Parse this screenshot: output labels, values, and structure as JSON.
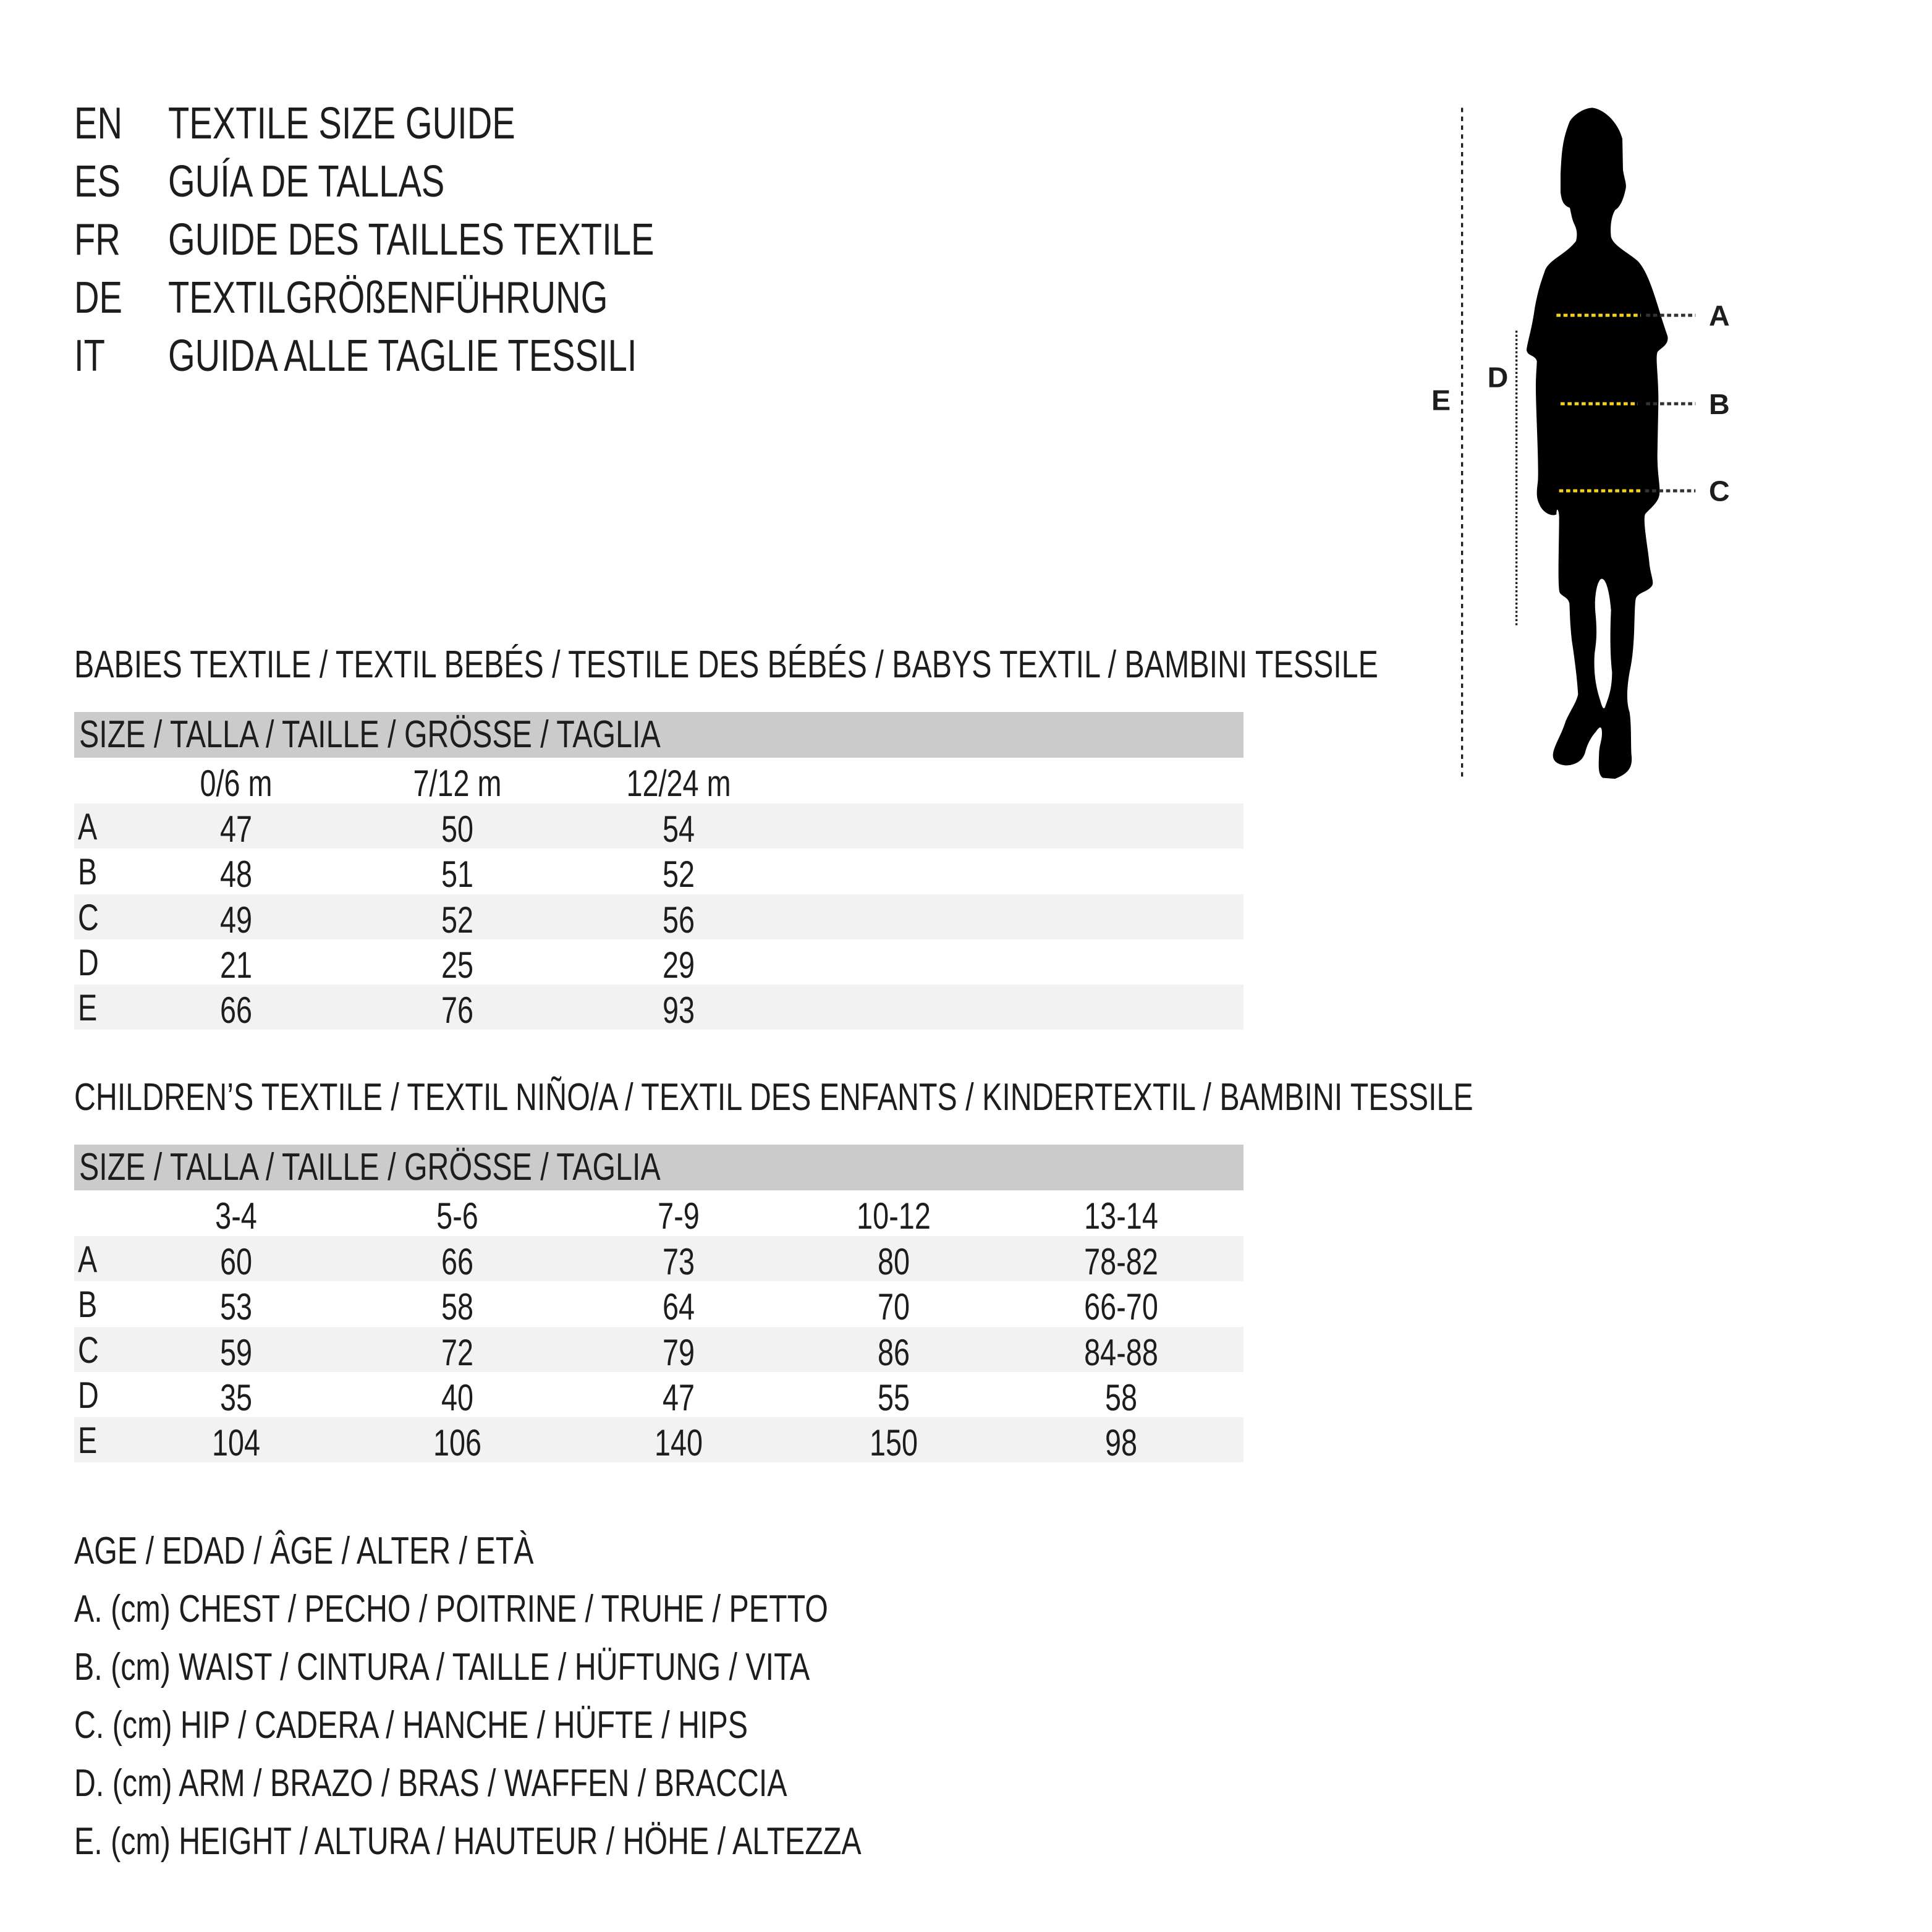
{
  "titles": [
    {
      "code": "EN",
      "text": "TEXTILE SIZE GUIDE"
    },
    {
      "code": "ES",
      "text": "GUÍA DE TALLAS"
    },
    {
      "code": "FR",
      "text": "GUIDE DES TAILLES TEXTILE"
    },
    {
      "code": "DE",
      "text": "TEXTILGRÖßENFÜHRUNG"
    },
    {
      "code": "IT",
      "text": "GUIDA ALLE TAGLIE TESSILI"
    }
  ],
  "figure": {
    "labels": {
      "A": "A",
      "B": "B",
      "C": "C",
      "D": "D",
      "E": "E"
    },
    "accent_color": "#f3d21b"
  },
  "babies": {
    "heading": "BABIES TEXTILE / TEXTIL BEBÉS / TESTILE DES BÉBÉS / BABYS TEXTIL / BAMBINI TESSILE",
    "size_header": "SIZE / TALLA / TAILLE / GRÖSSE / TAGLIA",
    "columns": [
      "0/6 m",
      "7/12 m",
      "12/24 m"
    ],
    "rows": [
      {
        "label": "A",
        "values": [
          "47",
          "50",
          "54"
        ]
      },
      {
        "label": "B",
        "values": [
          "48",
          "51",
          "52"
        ]
      },
      {
        "label": "C",
        "values": [
          "49",
          "52",
          "56"
        ]
      },
      {
        "label": "D",
        "values": [
          "21",
          "25",
          "29"
        ]
      },
      {
        "label": "E",
        "values": [
          "66",
          "76",
          "93"
        ]
      }
    ]
  },
  "children": {
    "heading": "CHILDREN’S TEXTILE / TEXTIL NIÑO/A / TEXTIL DES ENFANTS / KINDERTEXTIL / BAMBINI TESSILE",
    "size_header": "SIZE / TALLA / TAILLE / GRÖSSE / TAGLIA",
    "columns": [
      "3-4",
      "5-6",
      "7-9",
      "10-12",
      "13-14"
    ],
    "rows": [
      {
        "label": "A",
        "values": [
          "60",
          "66",
          "73",
          "80",
          "78-82"
        ]
      },
      {
        "label": "B",
        "values": [
          "53",
          "58",
          "64",
          "70",
          "66-70"
        ]
      },
      {
        "label": "C",
        "values": [
          "59",
          "72",
          "79",
          "86",
          "84-88"
        ]
      },
      {
        "label": "D",
        "values": [
          "35",
          "40",
          "47",
          "55",
          "58"
        ]
      },
      {
        "label": "E",
        "values": [
          "104",
          "106",
          "140",
          "150",
          "98"
        ]
      }
    ]
  },
  "legend": [
    "AGE / EDAD / ÂGE / ALTER / ETÀ",
    "A. (cm) CHEST / PECHO / POITRINE / TRUHE / PETTO",
    "B. (cm) WAIST / CINTURA / TAILLE / HÜFTUNG / VITA",
    "C. (cm) HIP / CADERA / HANCHE / HÜFTE / HIPS",
    "D. (cm) ARM / BRAZO / BRAS / WAFFEN / BRACCIA",
    "E. (cm) HEIGHT / ALTURA / HAUTEUR / HÖHE / ALTEZZA"
  ]
}
